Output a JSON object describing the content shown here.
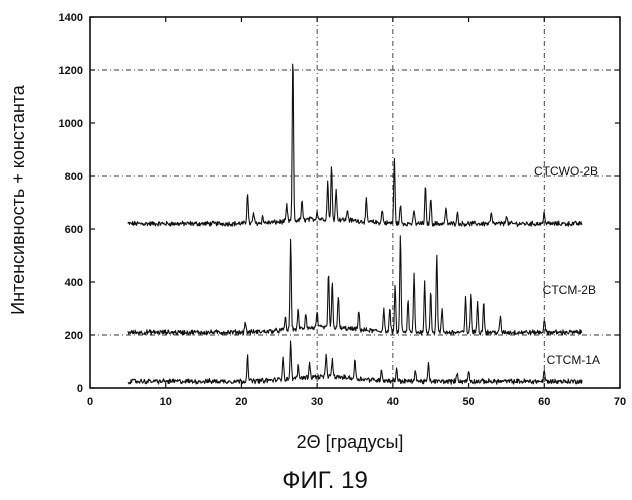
{
  "chart_data": {
    "type": "line",
    "xlabel": "2Θ [градусы]",
    "ylabel": "Интенсивность + константа",
    "xlim": [
      0,
      70
    ],
    "ylim": [
      0,
      1400
    ],
    "xticks": [
      0,
      10,
      20,
      30,
      40,
      50,
      60,
      70
    ],
    "yticks": [
      0,
      200,
      400,
      600,
      800,
      1000,
      1200,
      1400
    ],
    "grid": {
      "vertical": [
        30,
        40,
        60
      ],
      "horizontal": [
        200,
        800,
        1200
      ],
      "style": "dash-dot"
    },
    "series": [
      {
        "name": "CTCWO-2B",
        "baseline": 620,
        "x_range": [
          5,
          65
        ],
        "peaks": [
          [
            20.8,
            740
          ],
          [
            21.6,
            660
          ],
          [
            22.8,
            645
          ],
          [
            26.0,
            680
          ],
          [
            26.8,
            1250
          ],
          [
            28.0,
            690
          ],
          [
            30.0,
            650
          ],
          [
            31.4,
            760
          ],
          [
            31.9,
            820
          ],
          [
            32.5,
            740
          ],
          [
            34.0,
            660
          ],
          [
            36.5,
            700
          ],
          [
            38.6,
            670
          ],
          [
            40.2,
            860
          ],
          [
            41.0,
            690
          ],
          [
            42.8,
            670
          ],
          [
            44.3,
            760
          ],
          [
            45.0,
            720
          ],
          [
            47.0,
            680
          ],
          [
            48.5,
            665
          ],
          [
            53.0,
            660
          ],
          [
            55.0,
            655
          ],
          [
            60.0,
            665
          ]
        ]
      },
      {
        "name": "CTCM-2B",
        "baseline": 210,
        "x_range": [
          5,
          65
        ],
        "peaks": [
          [
            20.5,
            250
          ],
          [
            25.8,
            260
          ],
          [
            26.5,
            550
          ],
          [
            27.5,
            280
          ],
          [
            28.5,
            270
          ],
          [
            30.0,
            270
          ],
          [
            31.5,
            420
          ],
          [
            32.0,
            380
          ],
          [
            32.8,
            330
          ],
          [
            35.5,
            280
          ],
          [
            38.8,
            300
          ],
          [
            39.6,
            300
          ],
          [
            40.3,
            380
          ],
          [
            41.0,
            580
          ],
          [
            42.0,
            330
          ],
          [
            42.8,
            430
          ],
          [
            44.2,
            400
          ],
          [
            45.0,
            370
          ],
          [
            45.8,
            510
          ],
          [
            46.5,
            300
          ],
          [
            49.6,
            340
          ],
          [
            50.3,
            360
          ],
          [
            51.2,
            330
          ],
          [
            52.0,
            330
          ],
          [
            54.2,
            270
          ],
          [
            60.0,
            260
          ]
        ]
      },
      {
        "name": "CTCM-1A",
        "baseline": 25,
        "x_range": [
          5,
          65
        ],
        "peaks": [
          [
            20.8,
            125
          ],
          [
            25.5,
            115
          ],
          [
            26.5,
            160
          ],
          [
            27.5,
            70
          ],
          [
            29.0,
            80
          ],
          [
            31.2,
            110
          ],
          [
            32.0,
            90
          ],
          [
            35.0,
            95
          ],
          [
            38.5,
            70
          ],
          [
            40.5,
            75
          ],
          [
            43.0,
            70
          ],
          [
            44.7,
            90
          ],
          [
            48.5,
            60
          ],
          [
            50.0,
            65
          ],
          [
            60.0,
            65
          ]
        ]
      }
    ]
  },
  "caption": "ФИГ. 19",
  "colors": {
    "line": "#111111",
    "grid": "#333333",
    "background": "#ffffff"
  }
}
